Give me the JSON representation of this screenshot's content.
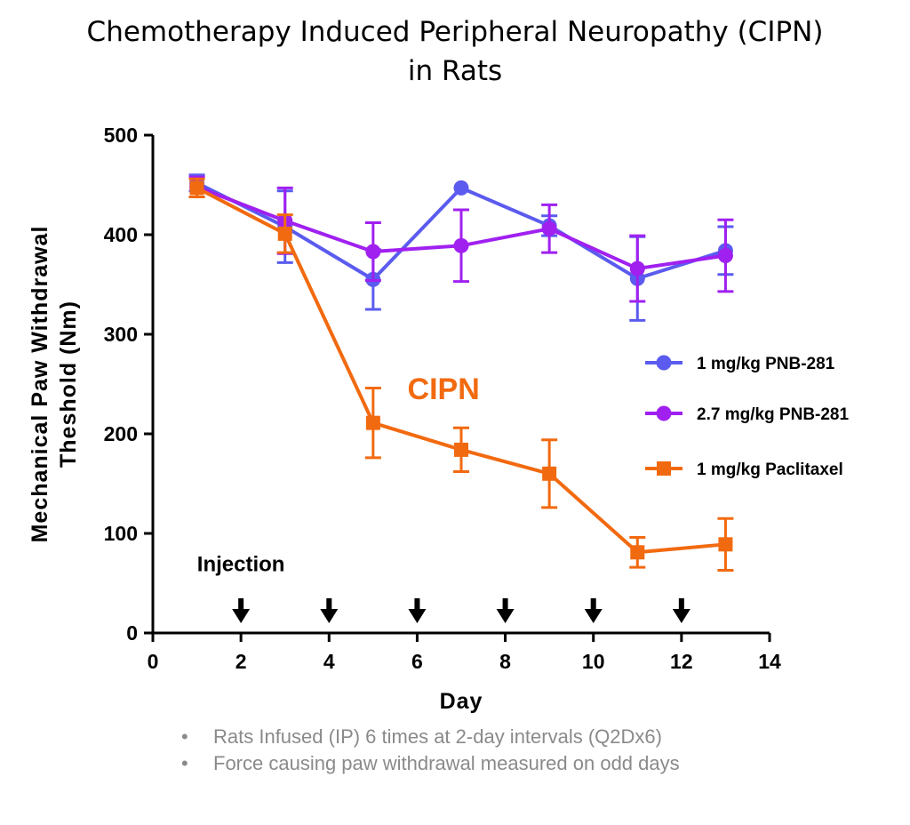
{
  "title": {
    "line1": "Chemotherapy Induced Peripheral Neuropathy (CIPN)",
    "line2": "in Rats"
  },
  "notes": [
    "Rats Infused (IP) 6 times at 2-day intervals (Q2Dx6)",
    "Force causing paw withdrawal measured on odd days"
  ],
  "chart_data": {
    "type": "line",
    "xlabel": "Day",
    "ylabel": [
      "Mechanical Paw Withdrawal",
      "Theshold (Nm)"
    ],
    "xlim": [
      0,
      14
    ],
    "ylim": [
      0,
      500
    ],
    "xticks": [
      0,
      2,
      4,
      6,
      8,
      10,
      12,
      14
    ],
    "yticks": [
      0,
      100,
      200,
      300,
      400,
      500
    ],
    "grid": false,
    "legend_position": "right",
    "series": [
      {
        "name": "1 mg/kg PNB-281",
        "color": "#5b5bef",
        "marker": "circle",
        "x": [
          1,
          3,
          5,
          7,
          9,
          11,
          13
        ],
        "y": [
          452,
          408,
          355,
          447,
          409,
          356,
          384
        ],
        "err": [
          8,
          36,
          30,
          0,
          10,
          42,
          24
        ]
      },
      {
        "name": "2.7 mg/kg PNB-281",
        "color": "#a020f0",
        "marker": "circle",
        "x": [
          1,
          3,
          5,
          7,
          9,
          11,
          13
        ],
        "y": [
          448,
          414,
          383,
          389,
          406,
          366,
          379
        ],
        "err": [
          10,
          33,
          29,
          36,
          24,
          33,
          36
        ]
      },
      {
        "name": "1 mg/kg Paclitaxel",
        "color": "#f26a10",
        "marker": "square",
        "x": [
          1,
          3,
          5,
          7,
          9,
          11,
          13
        ],
        "y": [
          447,
          401,
          211,
          184,
          160,
          81,
          89
        ],
        "err": [
          9,
          19,
          35,
          22,
          34,
          15,
          26
        ]
      }
    ],
    "annotations": [
      {
        "text": "CIPN",
        "color": "#f26a10",
        "x": 6.6,
        "y": 235
      },
      {
        "text": "Injection",
        "color": "#000000",
        "x": 2.0,
        "y": 62
      }
    ],
    "injection_days": [
      2,
      4,
      6,
      8,
      10,
      12
    ]
  }
}
